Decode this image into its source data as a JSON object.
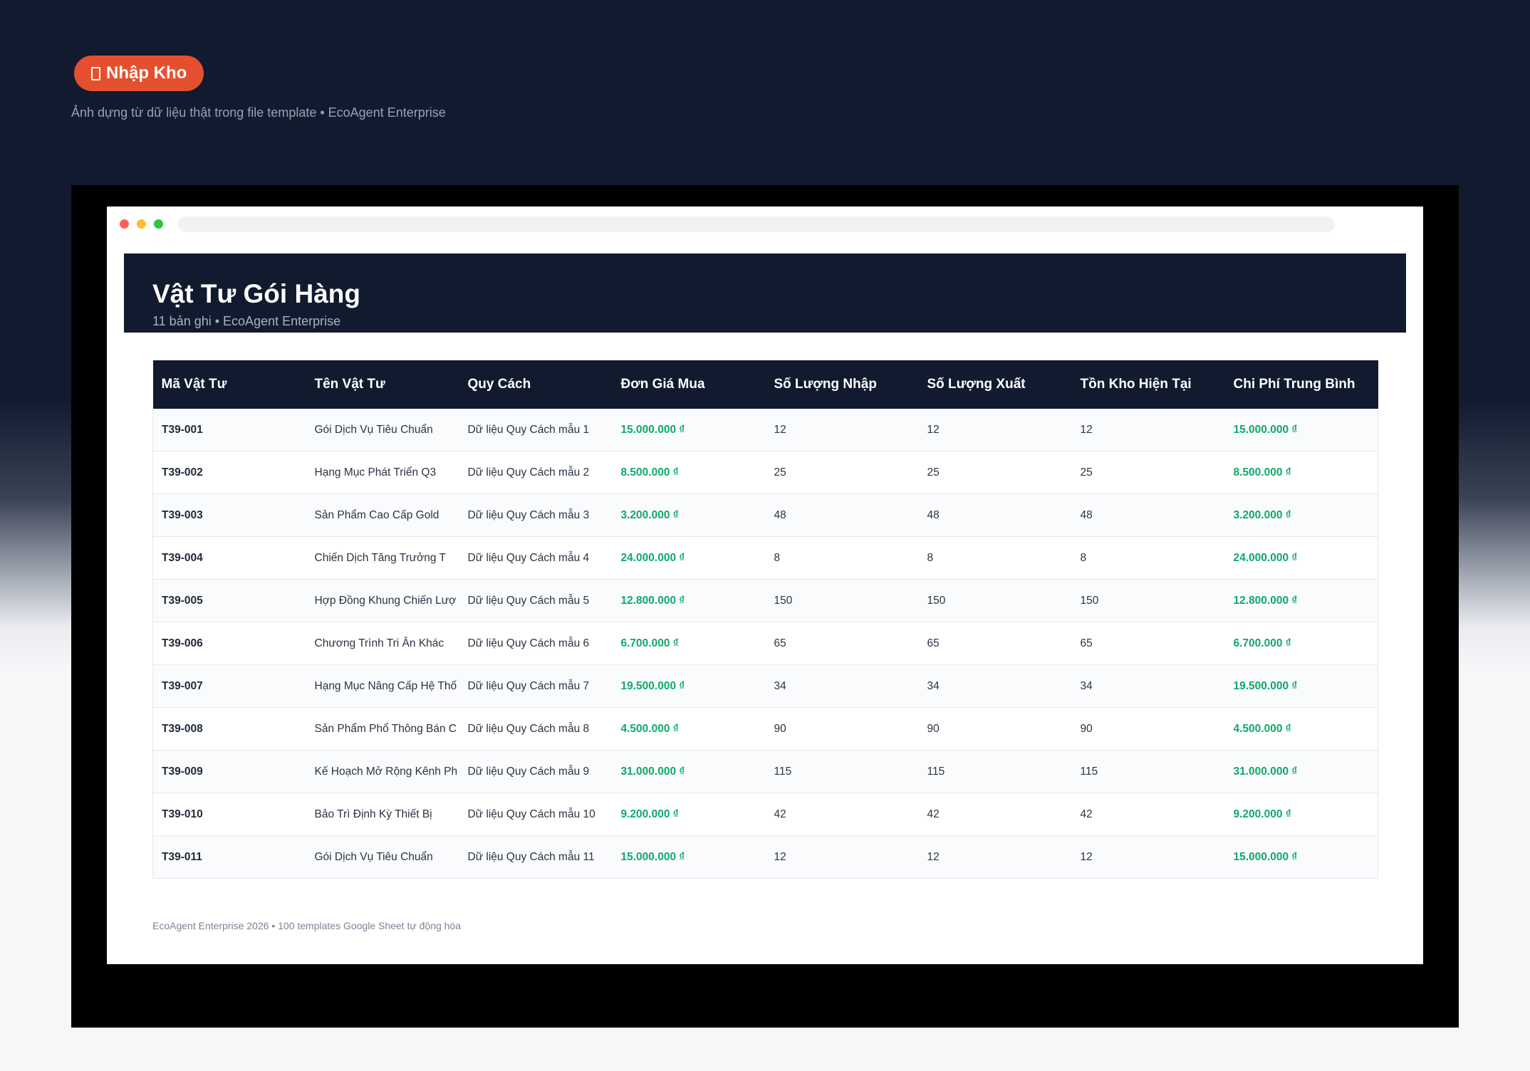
{
  "badge": {
    "icon": "tag-icon",
    "label": "Nhập Kho"
  },
  "caption": "Ảnh dựng từ dữ liệu thật trong file template • EcoAgent Enterprise",
  "sheet": {
    "title": "Vật Tư Gói Hàng",
    "subtitle": "11 bản ghi • EcoAgent Enterprise",
    "columns": [
      "Mã Vật Tư",
      "Tên Vật Tư",
      "Quy Cách",
      "Đơn Giá Mua",
      "Số Lượng Nhập",
      "Số Lượng Xuất",
      "Tồn Kho Hiện Tại",
      "Chi Phí Trung Bình"
    ],
    "rows": [
      [
        "T39-001",
        "Gói Dịch Vụ Tiêu Chuẩn",
        "Dữ liệu Quy Cách mẫu 1",
        "15.000.000 ₫",
        "12",
        "12",
        "12",
        "15.000.000 ₫"
      ],
      [
        "T39-002",
        "Hạng Mục Phát Triển Q3",
        "Dữ liệu Quy Cách mẫu 2",
        "8.500.000 ₫",
        "25",
        "25",
        "25",
        "8.500.000 ₫"
      ],
      [
        "T39-003",
        "Sản Phẩm Cao Cấp Gold",
        "Dữ liệu Quy Cách mẫu 3",
        "3.200.000 ₫",
        "48",
        "48",
        "48",
        "3.200.000 ₫"
      ],
      [
        "T39-004",
        "Chiến Dịch Tăng Trưởng T",
        "Dữ liệu Quy Cách mẫu 4",
        "24.000.000 ₫",
        "8",
        "8",
        "8",
        "24.000.000 ₫"
      ],
      [
        "T39-005",
        "Hợp Đồng Khung Chiến Lượ",
        "Dữ liệu Quy Cách mẫu 5",
        "12.800.000 ₫",
        "150",
        "150",
        "150",
        "12.800.000 ₫"
      ],
      [
        "T39-006",
        "Chương Trình Tri Ân Khác",
        "Dữ liệu Quy Cách mẫu 6",
        "6.700.000 ₫",
        "65",
        "65",
        "65",
        "6.700.000 ₫"
      ],
      [
        "T39-007",
        "Hạng Mục Nâng Cấp Hệ Thố",
        "Dữ liệu Quy Cách mẫu 7",
        "19.500.000 ₫",
        "34",
        "34",
        "34",
        "19.500.000 ₫"
      ],
      [
        "T39-008",
        "Sản Phẩm Phổ Thông Bán C",
        "Dữ liệu Quy Cách mẫu 8",
        "4.500.000 ₫",
        "90",
        "90",
        "90",
        "4.500.000 ₫"
      ],
      [
        "T39-009",
        "Kế Hoạch Mở Rộng Kênh Ph",
        "Dữ liệu Quy Cách mẫu 9",
        "31.000.000 ₫",
        "115",
        "115",
        "115",
        "31.000.000 ₫"
      ],
      [
        "T39-010",
        "Bảo Trì Định Kỳ Thiết Bị",
        "Dữ liệu Quy Cách mẫu 10",
        "9.200.000 ₫",
        "42",
        "42",
        "42",
        "9.200.000 ₫"
      ],
      [
        "T39-011",
        "Gói Dịch Vụ Tiêu Chuẩn",
        "Dữ liệu Quy Cách mẫu 11",
        "15.000.000 ₫",
        "12",
        "12",
        "12",
        "15.000.000 ₫"
      ]
    ],
    "money_color": "#10a86b",
    "header_color": "#111a2e"
  },
  "footer": "EcoAgent Enterprise 2026 • 100 templates Google Sheet tự động hóa"
}
